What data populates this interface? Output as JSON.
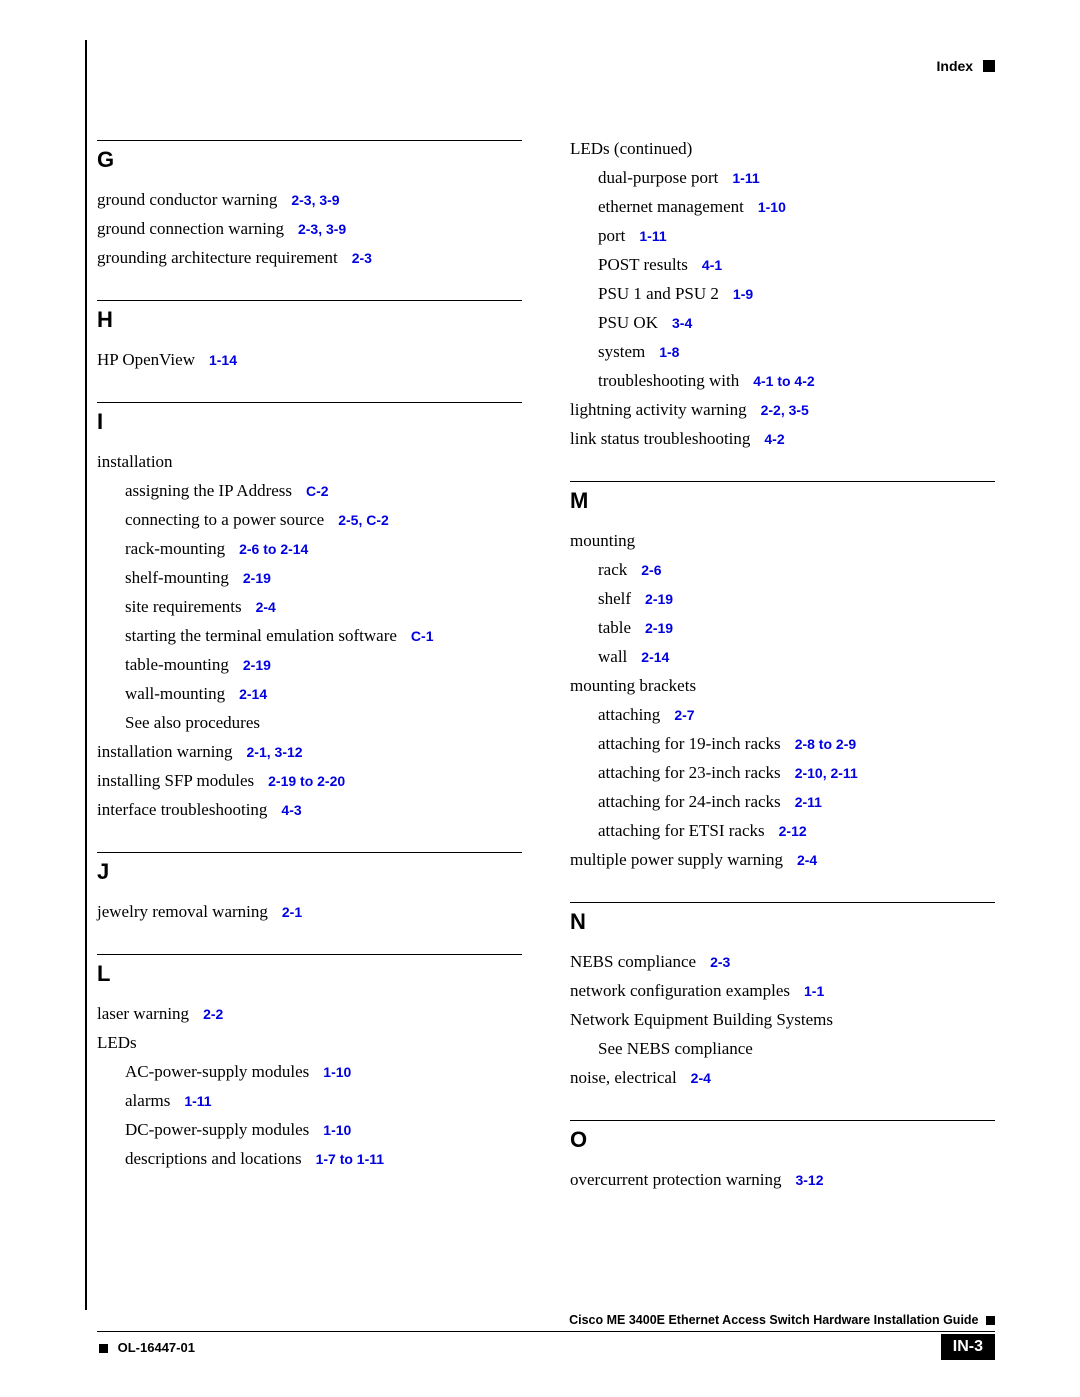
{
  "header": {
    "label": "Index"
  },
  "footer": {
    "guide_title": "Cisco ME 3400E Ethernet Access Switch Hardware Installation Guide",
    "doc_number": "OL-16447-01",
    "page_number": "IN-3"
  },
  "link_color": "#0000e0",
  "left_sections": [
    {
      "letter": "G",
      "entries": [
        {
          "text": "ground conductor warning",
          "ref": "2-3, 3-9",
          "indent": 0
        },
        {
          "text": "ground connection warning",
          "ref": "2-3, 3-9",
          "indent": 0
        },
        {
          "text": "grounding architecture requirement",
          "ref": "2-3",
          "indent": 0
        }
      ]
    },
    {
      "letter": "H",
      "entries": [
        {
          "text": "HP OpenView",
          "ref": "1-14",
          "indent": 0
        }
      ]
    },
    {
      "letter": "I",
      "entries": [
        {
          "text": "installation",
          "ref": "",
          "indent": 0
        },
        {
          "text": "assigning the IP Address",
          "ref": "C-2",
          "indent": 1
        },
        {
          "text": "connecting to a power source",
          "ref": "2-5, C-2",
          "indent": 1
        },
        {
          "text": "rack-mounting",
          "ref": "2-6 to 2-14",
          "indent": 1
        },
        {
          "text": "shelf-mounting",
          "ref": "2-19",
          "indent": 1
        },
        {
          "text": "site requirements",
          "ref": "2-4",
          "indent": 1
        },
        {
          "text": "starting the terminal emulation software",
          "ref": "C-1",
          "indent": 1
        },
        {
          "text": "table-mounting",
          "ref": "2-19",
          "indent": 1
        },
        {
          "text": "wall-mounting",
          "ref": "2-14",
          "indent": 1
        },
        {
          "text": "See also procedures",
          "ref": "",
          "indent": 1
        },
        {
          "text": "installation warning",
          "ref": "2-1, 3-12",
          "indent": 0
        },
        {
          "text": "installing SFP modules",
          "ref": "2-19 to 2-20",
          "indent": 0
        },
        {
          "text": "interface troubleshooting",
          "ref": "4-3",
          "indent": 0
        }
      ]
    },
    {
      "letter": "J",
      "entries": [
        {
          "text": "jewelry removal warning",
          "ref": "2-1",
          "indent": 0
        }
      ]
    },
    {
      "letter": "L",
      "entries": [
        {
          "text": "laser warning",
          "ref": "2-2",
          "indent": 0
        },
        {
          "text": "LEDs",
          "ref": "",
          "indent": 0
        },
        {
          "text": "AC-power-supply modules",
          "ref": "1-10",
          "indent": 1
        },
        {
          "text": "alarms",
          "ref": "1-11",
          "indent": 1
        },
        {
          "text": "DC-power-supply modules",
          "ref": "1-10",
          "indent": 1
        },
        {
          "text": "descriptions and locations",
          "ref": "1-7 to 1-11",
          "indent": 1
        }
      ]
    }
  ],
  "right_sections": [
    {
      "letter": "",
      "entries": [
        {
          "text": "LEDs (continued)",
          "ref": "",
          "indent": 0
        },
        {
          "text": "dual-purpose port",
          "ref": "1-11",
          "indent": 1
        },
        {
          "text": "ethernet management",
          "ref": "1-10",
          "indent": 1
        },
        {
          "text": "port",
          "ref": "1-11",
          "indent": 1
        },
        {
          "text": "POST results",
          "ref": "4-1",
          "indent": 1
        },
        {
          "text": "PSU 1 and PSU 2",
          "ref": "1-9",
          "indent": 1
        },
        {
          "text": "PSU OK",
          "ref": "3-4",
          "indent": 1
        },
        {
          "text": "system",
          "ref": "1-8",
          "indent": 1
        },
        {
          "text": "troubleshooting with",
          "ref": "4-1 to 4-2",
          "indent": 1
        },
        {
          "text": "lightning activity warning",
          "ref": "2-2, 3-5",
          "indent": 0
        },
        {
          "text": "link status troubleshooting",
          "ref": "4-2",
          "indent": 0
        }
      ]
    },
    {
      "letter": "M",
      "entries": [
        {
          "text": "mounting",
          "ref": "",
          "indent": 0
        },
        {
          "text": "rack",
          "ref": "2-6",
          "indent": 1
        },
        {
          "text": "shelf",
          "ref": "2-19",
          "indent": 1
        },
        {
          "text": "table",
          "ref": "2-19",
          "indent": 1
        },
        {
          "text": "wall",
          "ref": "2-14",
          "indent": 1
        },
        {
          "text": "mounting brackets",
          "ref": "",
          "indent": 0
        },
        {
          "text": "attaching",
          "ref": "2-7",
          "indent": 1
        },
        {
          "text": "attaching for 19-inch racks",
          "ref": "2-8 to 2-9",
          "indent": 1
        },
        {
          "text": "attaching for 23-inch racks",
          "ref": "2-10, 2-11",
          "indent": 1
        },
        {
          "text": "attaching for 24-inch racks",
          "ref": "2-11",
          "indent": 1
        },
        {
          "text": "attaching for ETSI racks",
          "ref": "2-12",
          "indent": 1
        },
        {
          "text": "multiple power supply warning",
          "ref": "2-4",
          "indent": 0
        }
      ]
    },
    {
      "letter": "N",
      "entries": [
        {
          "text": "NEBS compliance",
          "ref": "2-3",
          "indent": 0
        },
        {
          "text": "network configuration examples",
          "ref": "1-1",
          "indent": 0
        },
        {
          "text": " Network Equipment Building Systems",
          "ref": "",
          "indent": 0
        },
        {
          "text": "See NEBS compliance",
          "ref": "",
          "indent": 1
        },
        {
          "text": "noise, electrical",
          "ref": "2-4",
          "indent": 0
        }
      ]
    },
    {
      "letter": "O",
      "entries": [
        {
          "text": "overcurrent protection warning",
          "ref": "3-12",
          "indent": 0
        }
      ]
    }
  ]
}
